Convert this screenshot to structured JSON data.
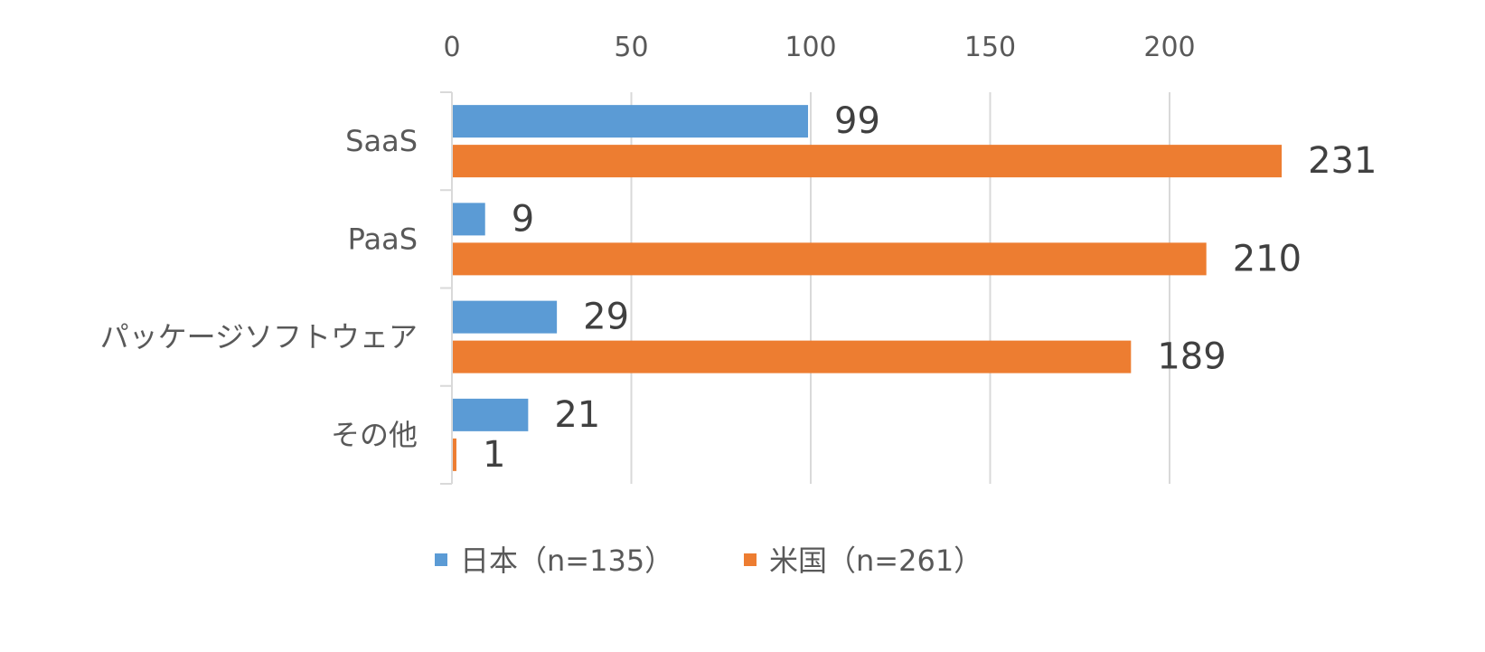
{
  "chart_data": {
    "type": "bar",
    "orientation": "horizontal",
    "categories": [
      "SaaS",
      "PaaS",
      "パッケージソフトウェア",
      "その他"
    ],
    "series": [
      {
        "name": "日本（n=135）",
        "color": "#5B9BD5",
        "values": [
          99,
          9,
          29,
          21
        ]
      },
      {
        "name": "米国（n=261）",
        "color": "#ED7D31",
        "values": [
          231,
          210,
          189,
          1
        ]
      }
    ],
    "xlim": [
      0,
      240
    ],
    "xticks": [
      "0",
      "50",
      "100",
      "150",
      "200"
    ],
    "xtick_values": [
      0,
      50,
      100,
      150,
      200
    ],
    "x_axis_position": "top",
    "grid": true,
    "data_labels": true,
    "legend": "bottom"
  }
}
